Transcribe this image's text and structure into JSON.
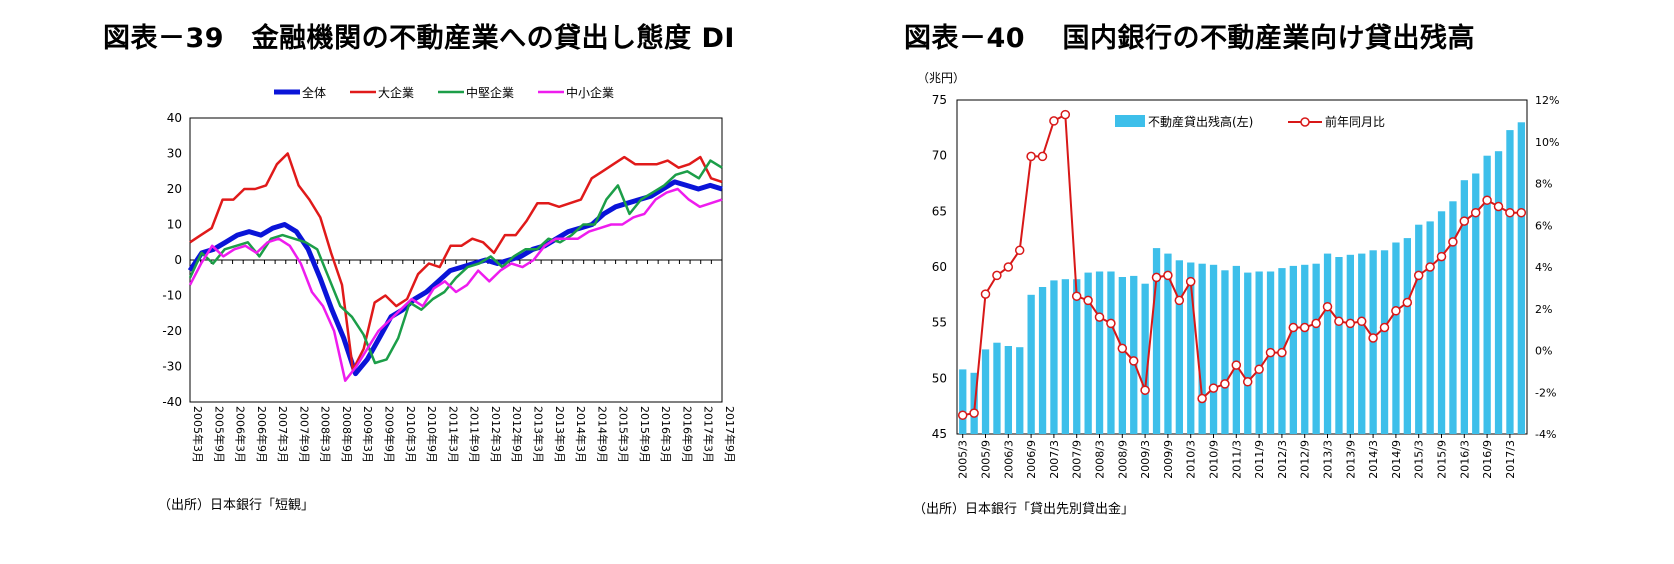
{
  "chart_data": [
    {
      "type": "line",
      "title": "図表－39　金融機関の不動産業への貸出し態度 DI",
      "source": "（出所）日本銀行「短観」",
      "ylim": [
        -40,
        40
      ],
      "yticks": [
        "40",
        "30",
        "20",
        "10",
        "0",
        "-10",
        "-20",
        "-30",
        "-40"
      ],
      "x_labels": [
        "2005年3月",
        "2005年9月",
        "2006年3月",
        "2006年9月",
        "2007年3月",
        "2007年9月",
        "2008年3月",
        "2008年9月",
        "2009年3月",
        "2009年9月",
        "2010年3月",
        "2010年9月",
        "2011年3月",
        "2011年9月",
        "2012年3月",
        "2012年9月",
        "2013年3月",
        "2013年9月",
        "2014年3月",
        "2014年9月",
        "2015年3月",
        "2015年9月",
        "2016年3月",
        "2016年9月",
        "2017年3月",
        "2017年9月"
      ],
      "legend_position": "top",
      "series": [
        {
          "name": "全体",
          "color": "#0a14d8",
          "width": 5,
          "values": [
            -3,
            2,
            3,
            5,
            7,
            8,
            7,
            9,
            10,
            8,
            3,
            -5,
            -14,
            -22,
            -32,
            -28,
            -22,
            -16,
            -14,
            -11,
            -9,
            -6,
            -3,
            -2,
            -1,
            0,
            -1,
            0,
            1,
            3,
            4,
            6,
            8,
            9,
            10,
            13,
            15,
            16,
            17,
            18,
            20,
            22,
            21,
            20,
            21,
            20
          ]
        },
        {
          "name": "大企業",
          "color": "#e01a1a",
          "width": 2.5,
          "values": [
            5,
            7,
            9,
            17,
            17,
            20,
            20,
            21,
            27,
            30,
            21,
            17,
            12,
            2,
            -7,
            -31,
            -25,
            -12,
            -10,
            -13,
            -11,
            -4,
            -1,
            -2,
            4,
            4,
            6,
            5,
            2,
            7,
            7,
            11,
            16,
            16,
            15,
            16,
            17,
            23,
            25,
            27,
            29,
            27,
            27,
            27,
            28,
            26,
            27,
            29,
            23,
            22
          ]
        },
        {
          "name": "中堅企業",
          "color": "#1c9e48",
          "width": 2.5,
          "values": [
            -5,
            2,
            -1,
            3,
            4,
            5,
            1,
            6,
            7,
            6,
            5,
            3,
            -5,
            -13,
            -16,
            -21,
            -29,
            -28,
            -22,
            -12,
            -14,
            -11,
            -9,
            -5,
            -2,
            -1,
            1,
            -2,
            1,
            3,
            3,
            6,
            5,
            7,
            10,
            10,
            17,
            21,
            13,
            17,
            19,
            21,
            24,
            25,
            23,
            28,
            26
          ]
        },
        {
          "name": "中小企業",
          "color": "#ee1cee",
          "width": 2.5,
          "values": [
            -7,
            -1,
            4,
            1,
            3,
            4,
            2,
            5,
            6,
            4,
            -1,
            -9,
            -13,
            -20,
            -34,
            -30,
            -25,
            -20,
            -17,
            -14,
            -11,
            -13,
            -8,
            -6,
            -9,
            -7,
            -3,
            -6,
            -3,
            -1,
            -2,
            0,
            4,
            6,
            6,
            6,
            8,
            9,
            10,
            10,
            12,
            13,
            17,
            19,
            20,
            17,
            15,
            16,
            17
          ]
        }
      ]
    },
    {
      "type": "bar+line",
      "title": "図表－40　 国内銀行の不動産業向け貸出残高",
      "source": "（出所）日本銀行「貸出先別貸出金」",
      "unit_label": "（兆円）",
      "ylim_left": [
        45,
        75
      ],
      "yticks_left": [
        "75",
        "70",
        "65",
        "60",
        "55",
        "50",
        "45"
      ],
      "ylim_right": [
        -4,
        12
      ],
      "yticks_right": [
        "12%",
        "10%",
        "8%",
        "6%",
        "4%",
        "2%",
        "0%",
        "-2%",
        "-4%"
      ],
      "x_labels": [
        "2005/3",
        "2005/9",
        "2006/3",
        "2006/9",
        "2007/3",
        "2007/9",
        "2008/3",
        "2008/9",
        "2009/3",
        "2009/9",
        "2010/3",
        "2010/9",
        "2011/3",
        "2011/9",
        "2012/3",
        "2012/9",
        "2013/3",
        "2013/9",
        "2014/3",
        "2014/9",
        "2015/3",
        "2015/9",
        "2016/3",
        "2016/9",
        "2017/3"
      ],
      "legend_position": "top-center",
      "bar_series": {
        "name": "不動産貸出残高(左)",
        "color": "#3dbfea",
        "values": [
          50.8,
          50.5,
          52.6,
          53.2,
          52.9,
          52.8,
          57.5,
          58.2,
          58.8,
          58.9,
          58.9,
          59.5,
          59.6,
          59.6,
          59.1,
          59.2,
          58.5,
          61.7,
          61.2,
          60.6,
          60.4,
          60.3,
          60.2,
          59.7,
          60.1,
          59.5,
          59.6,
          59.6,
          59.9,
          60.1,
          60.2,
          60.3,
          61.2,
          60.9,
          61.1,
          61.2,
          61.5,
          61.5,
          62.2,
          62.6,
          63.8,
          64.1,
          65.0,
          65.9,
          67.8,
          68.4,
          70.0,
          70.4,
          72.3,
          73.0
        ]
      },
      "line_series": {
        "name": "前年同月比",
        "color": "#d81818",
        "values": [
          -3.1,
          -3.0,
          2.7,
          3.6,
          4.0,
          4.8,
          9.3,
          9.3,
          11.0,
          11.3,
          2.6,
          2.4,
          1.6,
          1.3,
          0.1,
          -0.5,
          -1.9,
          3.5,
          3.6,
          2.4,
          3.3,
          -2.3,
          -1.8,
          -1.6,
          -0.7,
          -1.5,
          -0.9,
          -0.1,
          -0.1,
          1.1,
          1.1,
          1.3,
          2.1,
          1.4,
          1.3,
          1.4,
          0.6,
          1.1,
          1.9,
          2.3,
          3.6,
          4.0,
          4.5,
          5.2,
          6.2,
          6.6,
          7.2,
          6.9,
          6.6,
          6.6
        ]
      }
    }
  ]
}
